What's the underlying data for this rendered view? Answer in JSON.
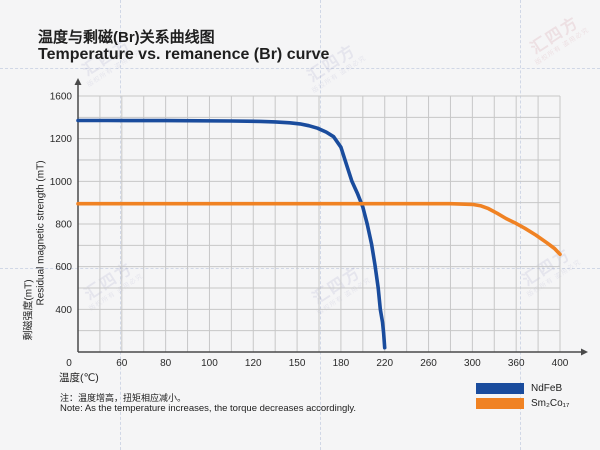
{
  "page": {
    "background": "#f5f5f6"
  },
  "title": {
    "zh": "温度与剩磁(Br)关系曲线图",
    "en": "Temperature vs. remanence (Br) curve"
  },
  "note": {
    "zh": "注：温度增高，扭矩相应减小。",
    "en": "Note: As the temperature increases, the torque decreases accordingly."
  },
  "watermark": {
    "main": "汇四方",
    "sub": "版权所有 盗用必究"
  },
  "chart_data": {
    "type": "line",
    "title": "Temperature vs. remanence (Br) curve",
    "x_axis": {
      "label": "温度(℃)",
      "ticks": [
        0,
        60,
        80,
        100,
        120,
        150,
        180,
        220,
        260,
        300,
        360,
        400
      ],
      "tick_spacing": "uniform (non-linear values, one label every 2 gridlines)"
    },
    "y_axis": {
      "label_zh": "剩磁强度(mT)",
      "label_en": "Residual magnetic strength (mT)",
      "ticks_top_to_bottom": [
        1600,
        1200,
        1000,
        800,
        600,
        400,
        0
      ],
      "tick_spacing": "uniform (one label every 2 gridlines)"
    },
    "grid": {
      "x_divisions": 22,
      "y_divisions": 12,
      "on": true,
      "color": "#c7c7c7"
    },
    "axis_color": "#4a4a4a",
    "tick_label_color": "#2a2a2a",
    "legend_position": "bottom-right",
    "series": [
      {
        "name": "NdFeB",
        "color": "#1a4c9d",
        "points": [
          [
            0,
            1370
          ],
          [
            40,
            1370
          ],
          [
            80,
            1369
          ],
          [
            110,
            1366
          ],
          [
            125,
            1362
          ],
          [
            135,
            1357
          ],
          [
            145,
            1349
          ],
          [
            152,
            1338
          ],
          [
            158,
            1322
          ],
          [
            164,
            1298
          ],
          [
            170,
            1262
          ],
          [
            175,
            1218
          ],
          [
            180,
            1160
          ],
          [
            185,
            1080
          ],
          [
            190,
            1000
          ],
          [
            195,
            945
          ],
          [
            200,
            880
          ],
          [
            204,
            800
          ],
          [
            208,
            705
          ],
          [
            211,
            610
          ],
          [
            214,
            500
          ],
          [
            216,
            400
          ],
          [
            218,
            280
          ],
          [
            219,
            180
          ],
          [
            220,
            40
          ]
        ]
      },
      {
        "name": "Sm₂Co₁₇",
        "color": "#f08223",
        "points": [
          [
            0,
            895
          ],
          [
            60,
            895
          ],
          [
            120,
            895
          ],
          [
            180,
            895
          ],
          [
            240,
            895
          ],
          [
            280,
            895
          ],
          [
            300,
            892
          ],
          [
            312,
            885
          ],
          [
            322,
            872
          ],
          [
            334,
            850
          ],
          [
            346,
            826
          ],
          [
            358,
            806
          ],
          [
            368,
            780
          ],
          [
            378,
            748
          ],
          [
            388,
            712
          ],
          [
            395,
            685
          ],
          [
            400,
            658
          ]
        ]
      }
    ]
  }
}
